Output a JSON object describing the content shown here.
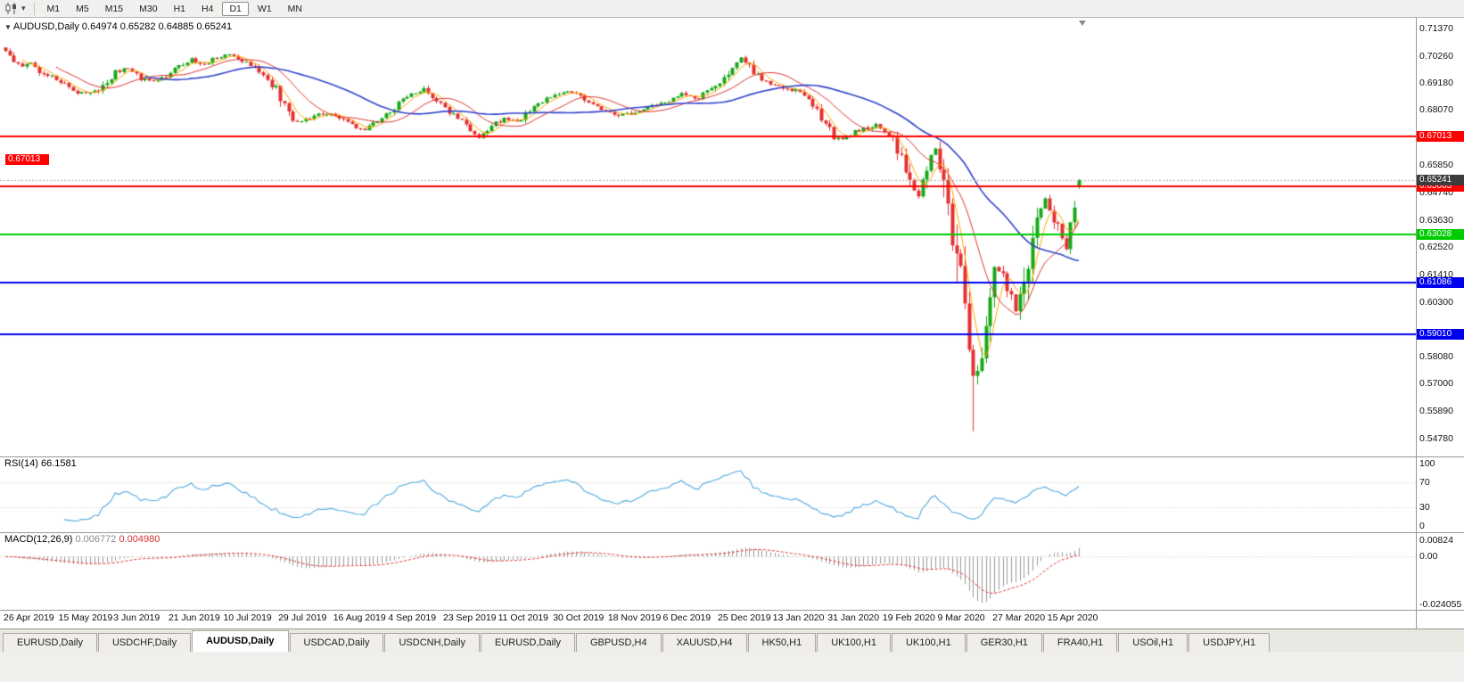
{
  "toolbar": {
    "timeframes": [
      {
        "label": "M1",
        "active": false
      },
      {
        "label": "M5",
        "active": false
      },
      {
        "label": "M15",
        "active": false
      },
      {
        "label": "M30",
        "active": false
      },
      {
        "label": "H1",
        "active": false
      },
      {
        "label": "H4",
        "active": false
      },
      {
        "label": "D1",
        "active": true
      },
      {
        "label": "W1",
        "active": false
      },
      {
        "label": "MN",
        "active": false
      }
    ]
  },
  "chart": {
    "title_line": "AUDUSD,Daily 0.64974 0.65282 0.64885 0.65241"
  },
  "chart_data": {
    "type": "candlestick",
    "symbol": "AUDUSD",
    "timeframe": "Daily",
    "ohlc_display": {
      "open": "0.64974",
      "high": "0.65282",
      "low": "0.64885",
      "close": "0.65241"
    },
    "last_candle": {
      "open": 0.64974,
      "high": 0.65282,
      "low": 0.64885,
      "close": 0.65241
    },
    "days_total": 255,
    "price_anchors": [
      [
        0,
        0.7042
      ],
      [
        2,
        0.7
      ],
      [
        4,
        0.6985
      ],
      [
        6,
        0.7005
      ],
      [
        8,
        0.6965
      ],
      [
        11,
        0.694
      ],
      [
        13,
        0.6925
      ],
      [
        15,
        0.69
      ],
      [
        17,
        0.688
      ],
      [
        20,
        0.6872
      ],
      [
        23,
        0.6905
      ],
      [
        26,
        0.696
      ],
      [
        29,
        0.6975
      ],
      [
        32,
        0.6935
      ],
      [
        35,
        0.692
      ],
      [
        38,
        0.6945
      ],
      [
        41,
        0.6985
      ],
      [
        44,
        0.701
      ],
      [
        47,
        0.6995
      ],
      [
        50,
        0.702
      ],
      [
        53,
        0.703
      ],
      [
        56,
        0.7005
      ],
      [
        59,
        0.698
      ],
      [
        62,
        0.6935
      ],
      [
        64,
        0.6895
      ],
      [
        66,
        0.682
      ],
      [
        68,
        0.677
      ],
      [
        70,
        0.6758
      ],
      [
        73,
        0.6785
      ],
      [
        76,
        0.6795
      ],
      [
        79,
        0.6775
      ],
      [
        82,
        0.6745
      ],
      [
        85,
        0.673
      ],
      [
        88,
        0.676
      ],
      [
        91,
        0.68
      ],
      [
        94,
        0.685
      ],
      [
        97,
        0.688
      ],
      [
        99,
        0.689
      ],
      [
        102,
        0.684
      ],
      [
        105,
        0.6795
      ],
      [
        108,
        0.676
      ],
      [
        110,
        0.6715
      ],
      [
        112,
        0.67
      ],
      [
        115,
        0.6745
      ],
      [
        118,
        0.677
      ],
      [
        121,
        0.6758
      ],
      [
        124,
        0.68
      ],
      [
        127,
        0.684
      ],
      [
        130,
        0.687
      ],
      [
        133,
        0.689
      ],
      [
        136,
        0.686
      ],
      [
        139,
        0.683
      ],
      [
        142,
        0.68
      ],
      [
        145,
        0.6785
      ],
      [
        148,
        0.679
      ],
      [
        151,
        0.681
      ],
      [
        154,
        0.683
      ],
      [
        157,
        0.6845
      ],
      [
        160,
        0.687
      ],
      [
        163,
        0.685
      ],
      [
        166,
        0.688
      ],
      [
        169,
        0.6925
      ],
      [
        172,
        0.6975
      ],
      [
        174,
        0.7015
      ],
      [
        176,
        0.699
      ],
      [
        178,
        0.694
      ],
      [
        181,
        0.691
      ],
      [
        184,
        0.69
      ],
      [
        187,
        0.6885
      ],
      [
        190,
        0.6845
      ],
      [
        192,
        0.681
      ],
      [
        194,
        0.675
      ],
      [
        196,
        0.67
      ],
      [
        198,
        0.6695
      ],
      [
        201,
        0.672
      ],
      [
        204,
        0.6735
      ],
      [
        206,
        0.6745
      ],
      [
        208,
        0.672
      ],
      [
        210,
        0.668
      ],
      [
        212,
        0.6625
      ],
      [
        214,
        0.6525
      ],
      [
        216,
        0.6455
      ],
      [
        217,
        0.653
      ],
      [
        219,
        0.662
      ],
      [
        220,
        0.6645
      ],
      [
        221,
        0.658
      ],
      [
        222,
        0.66
      ],
      [
        223,
        0.649
      ],
      [
        224,
        0.623
      ],
      [
        226,
        0.612
      ],
      [
        227,
        0.599
      ],
      [
        228,
        0.579
      ],
      [
        229,
        0.5745
      ],
      [
        230,
        0.575
      ],
      [
        231,
        0.583
      ],
      [
        232,
        0.596
      ],
      [
        234,
        0.617
      ],
      [
        236,
        0.6135
      ],
      [
        238,
        0.606
      ],
      [
        239,
        0.599
      ],
      [
        241,
        0.6085
      ],
      [
        243,
        0.6335
      ],
      [
        246,
        0.6445
      ],
      [
        248,
        0.6365
      ],
      [
        251,
        0.6255
      ],
      [
        252,
        0.632
      ],
      [
        253,
        0.64
      ],
      [
        254,
        0.65241
      ]
    ],
    "special_low": {
      "day": 229,
      "low": 0.5507
    },
    "y_axis": {
      "price_at_top": 0.71803,
      "price_at_bottom": 0.54057,
      "labels": [
        "0.71370",
        "0.70260",
        "0.69180",
        "0.68070",
        "0.65850",
        "0.64740",
        "0.63630",
        "0.62520",
        "0.61410",
        "0.60300",
        "0.58080",
        "0.57000",
        "0.55890",
        "0.54780"
      ]
    },
    "x_axis": {
      "labels": [
        {
          "day": 0,
          "text": "26 Apr 2019"
        },
        {
          "day": 13,
          "text": "15 May 2019"
        },
        {
          "day": 26,
          "text": "3 Jun 2019"
        },
        {
          "day": 39,
          "text": "21 Jun 2019"
        },
        {
          "day": 52,
          "text": "10 Jul 2019"
        },
        {
          "day": 65,
          "text": "29 Jul 2019"
        },
        {
          "day": 78,
          "text": "16 Aug 2019"
        },
        {
          "day": 91,
          "text": "4 Sep 2019"
        },
        {
          "day": 104,
          "text": "23 Sep 2019"
        },
        {
          "day": 117,
          "text": "11 Oct 2019"
        },
        {
          "day": 130,
          "text": "30 Oct 2019"
        },
        {
          "day": 143,
          "text": "18 Nov 2019"
        },
        {
          "day": 156,
          "text": "6 Dec 2019"
        },
        {
          "day": 169,
          "text": "25 Dec 2019"
        },
        {
          "day": 182,
          "text": "13 Jan 2020"
        },
        {
          "day": 195,
          "text": "31 Jan 2020"
        },
        {
          "day": 208,
          "text": "19 Feb 2020"
        },
        {
          "day": 221,
          "text": "9 Mar 2020"
        },
        {
          "day": 234,
          "text": "27 Mar 2020"
        },
        {
          "day": 247,
          "text": "15 Apr 2020"
        }
      ]
    },
    "hlines": [
      {
        "price": 0.67013,
        "label": "0.67013",
        "color": "#FF0000",
        "left_label": true
      },
      {
        "price": 0.65003,
        "label": "0.65003",
        "color": "#FF0000",
        "left_label": false
      },
      {
        "price": 0.63028,
        "label": "0.63028",
        "color": "#00CC00",
        "left_label": false
      },
      {
        "price": 0.61086,
        "label": "0.61086",
        "color": "#0000F0",
        "left_label": false
      },
      {
        "price": 0.5901,
        "label": "0.59010",
        "color": "#0000F0",
        "left_label": false
      }
    ],
    "current_price": {
      "value": 0.65241,
      "label": "0.65241",
      "badge_color": "#3C3C3C"
    },
    "candle_colors": {
      "up": "#18A818",
      "down": "#E53030"
    },
    "moving_averages": [
      {
        "period": 5,
        "color": "#FFA500"
      },
      {
        "period": 13,
        "color": "#E03232"
      },
      {
        "period": 34,
        "color": "#3344CC"
      }
    ],
    "indicators": {
      "rsi": {
        "name": "RSI(14)",
        "value": "66.1581",
        "period": 14,
        "levels": [
          "100",
          "70",
          "30",
          "0"
        ],
        "line_color": "#4FA8DC"
      },
      "macd": {
        "name": "MACD(12,26,9)",
        "value_main": "0.006772",
        "value_signal": "0.004980",
        "fast": 12,
        "slow": 26,
        "signal": 9,
        "axis_labels": [
          {
            "value": 0.00824,
            "text": "0.00824"
          },
          {
            "value": 0,
            "text": "0.00"
          },
          {
            "value": -0.024055,
            "text": "-0.024055"
          }
        ],
        "hist_color": "#9A9A9A",
        "signal_color": "#E03232"
      }
    }
  },
  "tabs": [
    {
      "label": "EURUSD,Daily",
      "active": false
    },
    {
      "label": "USDCHF,Daily",
      "active": false
    },
    {
      "label": "AUDUSD,Daily",
      "active": true
    },
    {
      "label": "USDCAD,Daily",
      "active": false
    },
    {
      "label": "USDCNH,Daily",
      "active": false
    },
    {
      "label": "EURUSD,Daily",
      "active": false
    },
    {
      "label": "GBPUSD,H4",
      "active": false
    },
    {
      "label": "XAUUSD,H4",
      "active": false
    },
    {
      "label": "HK50,H1",
      "active": false
    },
    {
      "label": "UK100,H1",
      "active": false
    },
    {
      "label": "UK100,H1",
      "active": false
    },
    {
      "label": "GER30,H1",
      "active": false
    },
    {
      "label": "FRA40,H1",
      "active": false
    },
    {
      "label": "USOil,H1",
      "active": false
    },
    {
      "label": "USDJPY,H1",
      "active": false
    }
  ]
}
